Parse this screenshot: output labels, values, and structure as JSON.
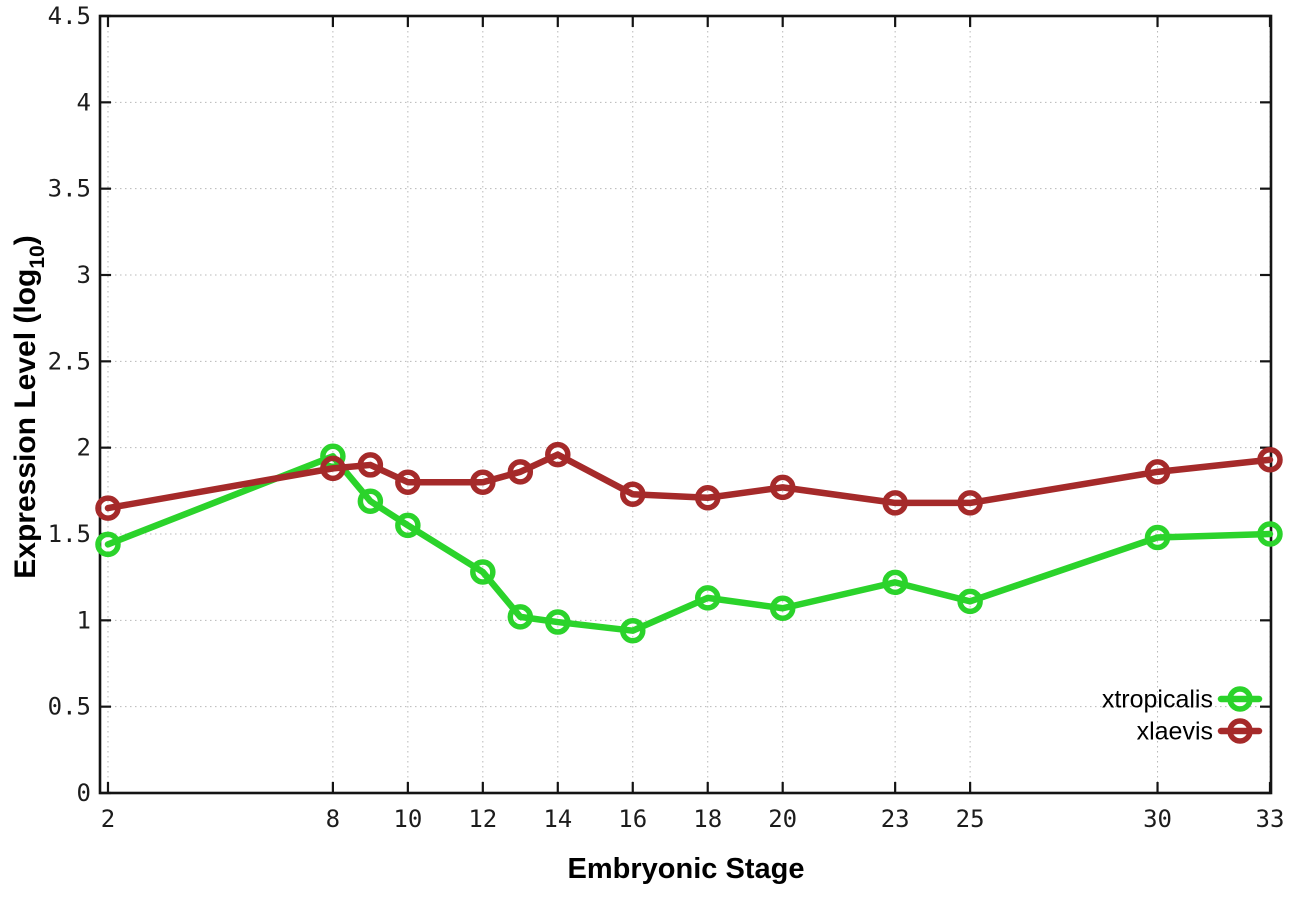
{
  "chart_data": {
    "type": "line",
    "title": "",
    "xlabel": "Embryonic Stage",
    "ylabel": "Expression Level (log10)",
    "ylabel_parts": {
      "pre": "Expression Level (log",
      "sub": "10",
      "post": ")"
    },
    "x": [
      2,
      8,
      9,
      10,
      12,
      13,
      14,
      16,
      18,
      20,
      23,
      25,
      30,
      33
    ],
    "series": [
      {
        "name": "xtropicalis",
        "color": "#2bd32b",
        "values": [
          1.44,
          1.95,
          1.69,
          1.55,
          1.28,
          1.02,
          0.99,
          0.94,
          1.13,
          1.07,
          1.22,
          1.11,
          1.48,
          1.5
        ]
      },
      {
        "name": "xlaevis",
        "color": "#a52a2a",
        "values": [
          1.65,
          1.88,
          1.9,
          1.8,
          1.8,
          1.86,
          1.96,
          1.73,
          1.71,
          1.77,
          1.68,
          1.68,
          1.86,
          1.93
        ]
      }
    ],
    "xticks": [
      2,
      8,
      10,
      12,
      14,
      16,
      18,
      20,
      23,
      25,
      30,
      33
    ],
    "xtick_labels": [
      "2",
      "8",
      "10",
      "12",
      "14",
      "16",
      "18",
      "20",
      "23",
      "25",
      "30",
      "33"
    ],
    "yticks": [
      0,
      0.5,
      1,
      1.5,
      2,
      2.5,
      3,
      3.5,
      4,
      4.5
    ],
    "ytick_labels": [
      "0",
      "0.5",
      "1",
      "1.5",
      "2",
      "2.5",
      "3",
      "3.5",
      "4",
      "4.5"
    ],
    "xlim": [
      1.787,
      33.027
    ],
    "ylim": [
      0,
      4.5
    ],
    "grid": true,
    "marker": "open-circle",
    "legend_position": "inside-bottom-right",
    "colors": {
      "background": "#ffffff",
      "border": "#141414",
      "grid": "#b8b8b8",
      "tick_text": "#1c1c1c"
    }
  }
}
